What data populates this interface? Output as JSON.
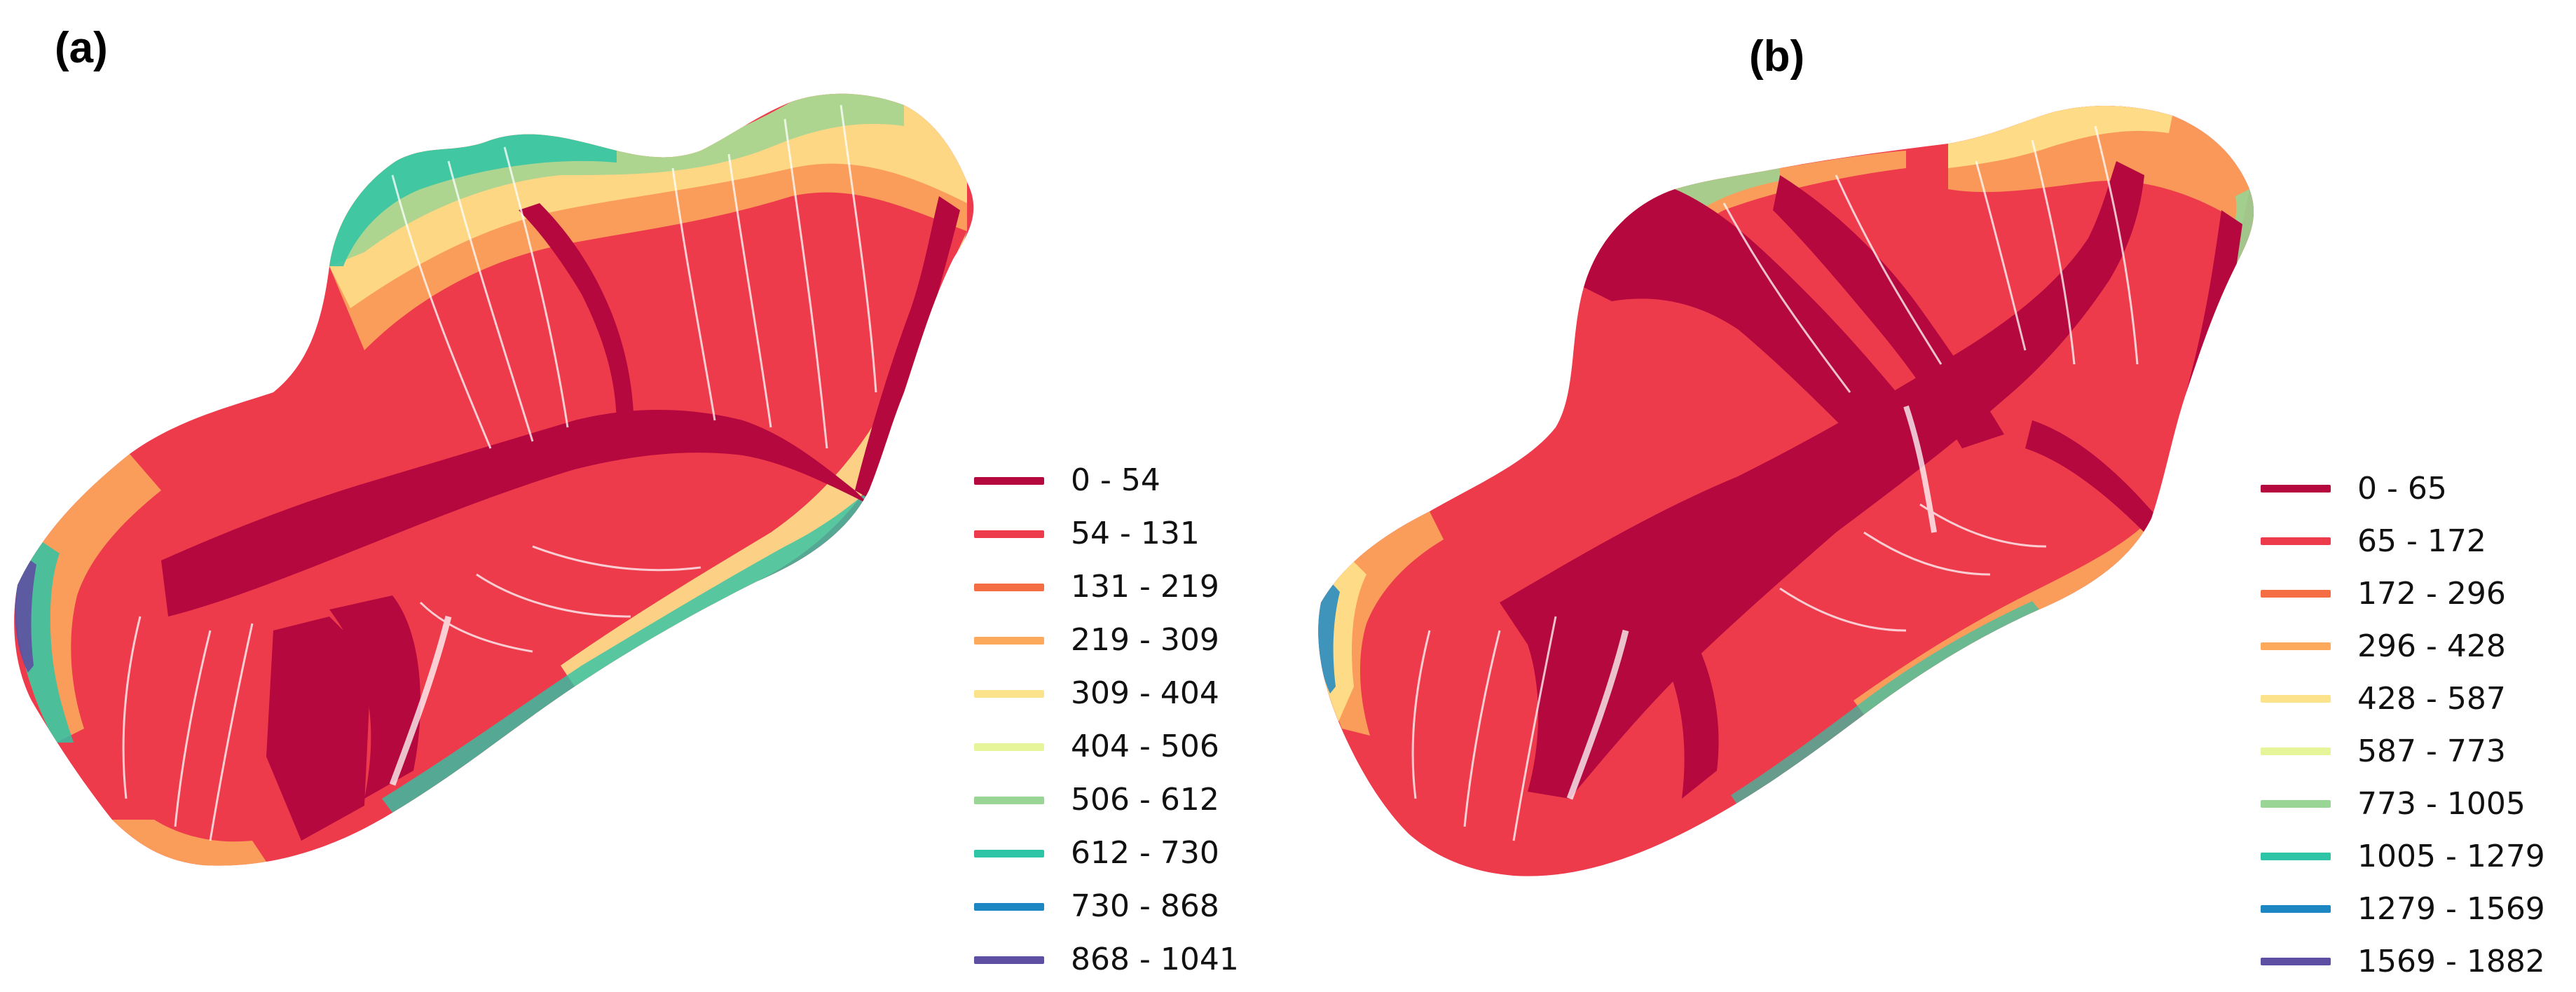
{
  "figure": {
    "panels": [
      {
        "label": "(a)",
        "legend": [
          {
            "range": "0 - 54",
            "color": "#b5083f"
          },
          {
            "range": "54 - 131",
            "color": "#ee3b4c"
          },
          {
            "range": "131 - 219",
            "color": "#f46d43"
          },
          {
            "range": "219 - 309",
            "color": "#fca95c"
          },
          {
            "range": "309 - 404",
            "color": "#fde28c"
          },
          {
            "range": "404 - 506",
            "color": "#e6f599"
          },
          {
            "range": "506 - 612",
            "color": "#99d594"
          },
          {
            "range": "612 - 730",
            "color": "#2ec4a6"
          },
          {
            "range": "730 - 868",
            "color": "#1d87c4"
          },
          {
            "range": "868 - 1041",
            "color": "#5e4fa2"
          }
        ]
      },
      {
        "label": "(b)",
        "legend": [
          {
            "range": "0 - 65",
            "color": "#b5083f"
          },
          {
            "range": "65 - 172",
            "color": "#ee3b4c"
          },
          {
            "range": "172 - 296",
            "color": "#f46d43"
          },
          {
            "range": "296 - 428",
            "color": "#fca95c"
          },
          {
            "range": "428 - 587",
            "color": "#fde28c"
          },
          {
            "range": "587 - 773",
            "color": "#e6f599"
          },
          {
            "range": "773 - 1005",
            "color": "#99d594"
          },
          {
            "range": "1005 - 1279",
            "color": "#2ec4a6"
          },
          {
            "range": "1279 - 1569",
            "color": "#1d87c4"
          },
          {
            "range": "1569 - 1882",
            "color": "#5e4fa2"
          }
        ]
      }
    ]
  }
}
